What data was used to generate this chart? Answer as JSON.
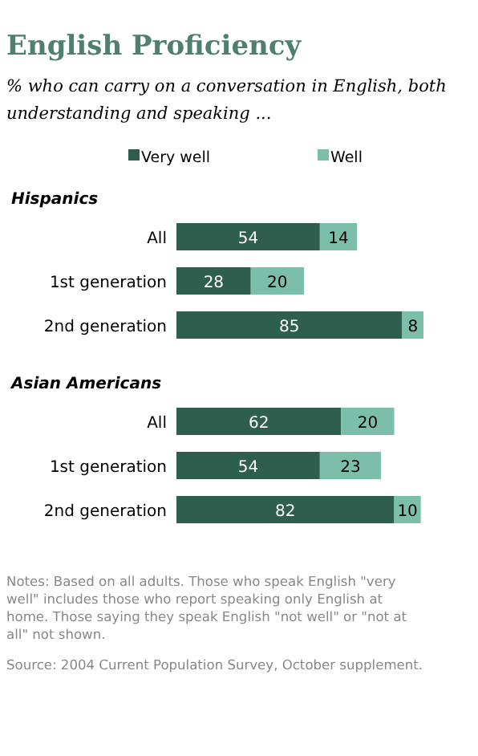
{
  "chart_data": {
    "type": "bar",
    "orientation": "horizontal",
    "stacked": true,
    "title": "English Proficiency",
    "subtitle": "% who can carry on a conversation in English, both understanding and speaking ...",
    "categories": [
      "All",
      "1st generation",
      "2nd generation",
      "All",
      "1st generation",
      "2nd generation"
    ],
    "series": [
      {
        "name": "Very well",
        "color": "#2e5e4e",
        "values": [
          54,
          28,
          85,
          62,
          54,
          82
        ]
      },
      {
        "name": "Well",
        "color": "#7bbfaa",
        "values": [
          14,
          20,
          8,
          20,
          23,
          10
        ]
      }
    ],
    "data_labels": true,
    "legend": "top",
    "annotations": [
      "Hispanics",
      "Asian Americans",
      "Notes: Based on all adults. Those who speak English \"very well\" includes those who report speaking only English at home. Those saying they speak English \"not well\" or \"not at all\" not shown.",
      "Source: 2004 Current Population Survey, October supplement."
    ]
  }
}
